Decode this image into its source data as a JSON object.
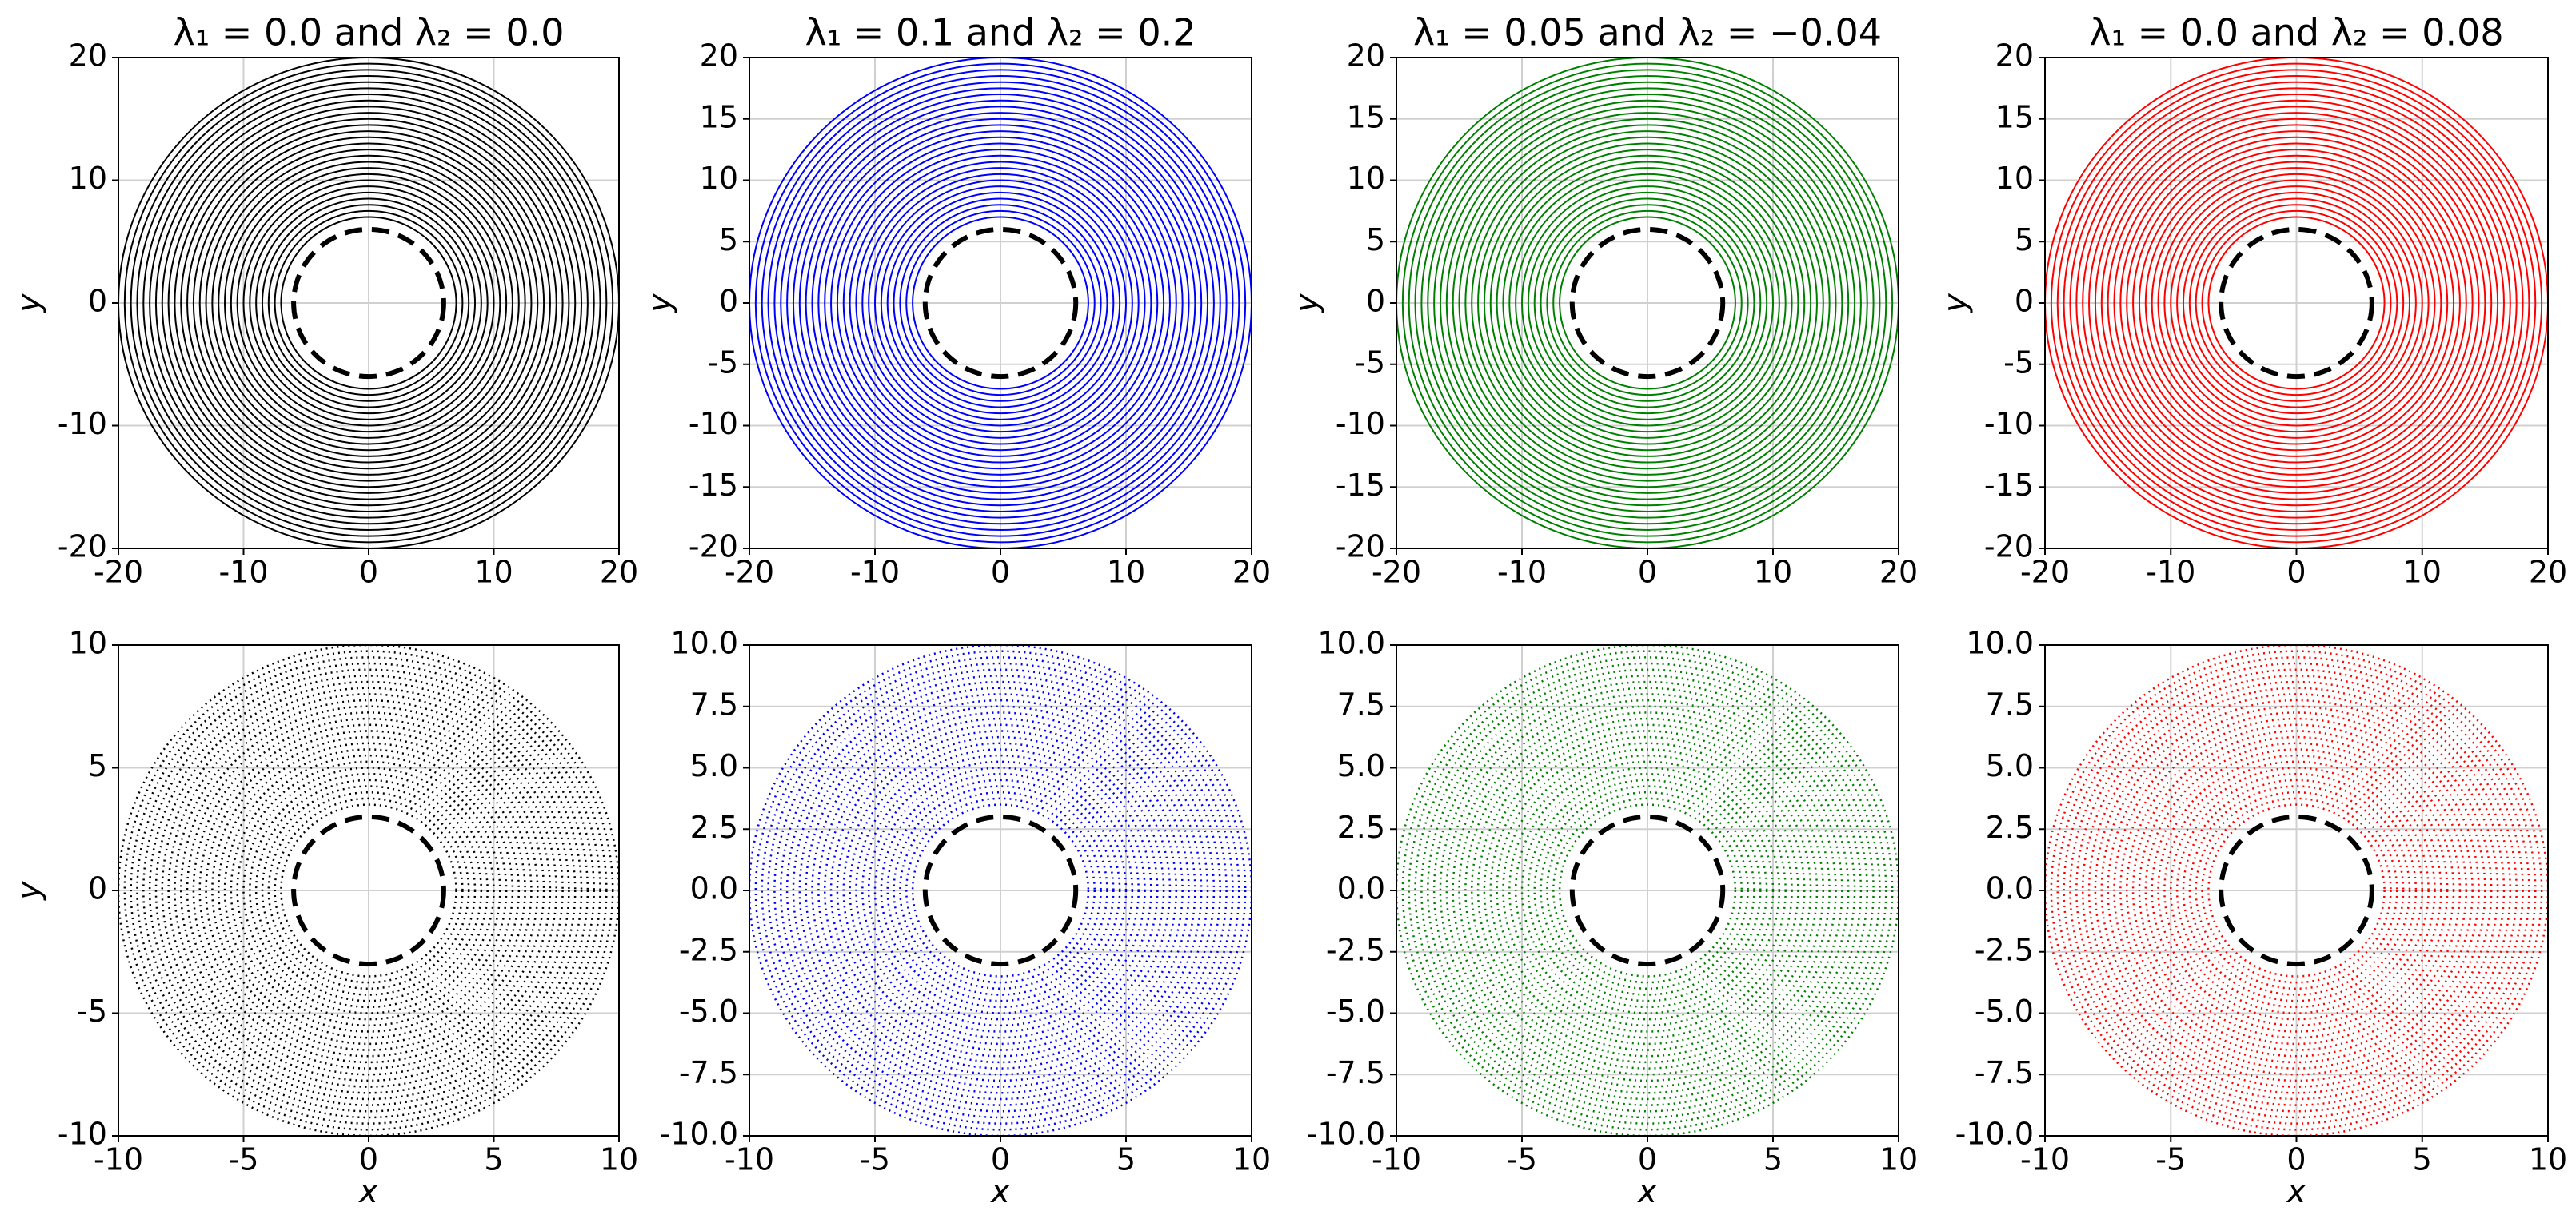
{
  "chart_data": [
    {
      "type": "rings",
      "title": "λ₁ = 0.0 and λ₂ = 0.0",
      "ylabel": "y",
      "color": "#000000",
      "line_style": "solid",
      "grid": true,
      "xlim": [
        -20,
        20
      ],
      "ylim": [
        -20,
        20
      ],
      "xticks": [
        -20,
        -10,
        0,
        10,
        20
      ],
      "yticks": [
        -20,
        -10,
        0,
        10,
        20
      ],
      "boundary_radius": 6,
      "radii": [
        7,
        7.5,
        8,
        8.5,
        9,
        9.5,
        10,
        10.5,
        11,
        11.5,
        12,
        12.5,
        13,
        13.5,
        14,
        14.5,
        15,
        15.5,
        16,
        16.5,
        17,
        17.5,
        18,
        18.5,
        19,
        19.5,
        20
      ]
    },
    {
      "type": "rings",
      "title": "λ₁ = 0.1 and λ₂ = 0.2",
      "ylabel": "y",
      "color": "#0000ff",
      "line_style": "solid",
      "grid": true,
      "xlim": [
        -20,
        20
      ],
      "ylim": [
        -20,
        20
      ],
      "xticks": [
        -20,
        -10,
        0,
        10,
        20
      ],
      "yticks": [
        -20,
        -15,
        -10,
        -5,
        0,
        5,
        10,
        15,
        20
      ],
      "boundary_radius": 6,
      "radii": [
        7,
        7.5,
        8,
        8.5,
        9,
        9.5,
        10,
        10.5,
        11,
        11.5,
        12,
        12.5,
        13,
        13.5,
        14,
        14.5,
        15,
        15.5,
        16,
        16.5,
        17,
        17.5,
        18,
        18.5,
        19,
        19.5,
        20
      ]
    },
    {
      "type": "rings",
      "title": "λ₁ = 0.05 and λ₂ = −0.04",
      "ylabel": "y",
      "color": "#008000",
      "line_style": "solid",
      "grid": true,
      "xlim": [
        -20,
        20
      ],
      "ylim": [
        -20,
        20
      ],
      "xticks": [
        -20,
        -10,
        0,
        10,
        20
      ],
      "yticks": [
        -20,
        -15,
        -10,
        -5,
        0,
        5,
        10,
        15,
        20
      ],
      "boundary_radius": 6,
      "radii": [
        7,
        7.5,
        8,
        8.5,
        9,
        9.5,
        10,
        10.5,
        11,
        11.5,
        12,
        12.5,
        13,
        13.5,
        14,
        14.5,
        15,
        15.5,
        16,
        16.5,
        17,
        17.5,
        18,
        18.5,
        19,
        19.5,
        20
      ]
    },
    {
      "type": "rings",
      "title": "λ₁ = 0.0 and λ₂ = 0.08",
      "ylabel": "y",
      "color": "#ff0000",
      "line_style": "solid",
      "grid": true,
      "xlim": [
        -20,
        20
      ],
      "ylim": [
        -20,
        20
      ],
      "xticks": [
        -20,
        -10,
        0,
        10,
        20
      ],
      "yticks": [
        -20,
        -15,
        -10,
        -5,
        0,
        5,
        10,
        15,
        20
      ],
      "boundary_radius": 6,
      "radii": [
        7,
        7.5,
        8,
        8.5,
        9,
        9.5,
        10,
        10.5,
        11,
        11.5,
        12,
        12.5,
        13,
        13.5,
        14,
        14.5,
        15,
        15.5,
        16,
        16.5,
        17,
        17.5,
        18,
        18.5,
        19,
        19.5,
        20
      ]
    },
    {
      "type": "rings",
      "xlabel": "x",
      "ylabel": "y",
      "color": "#000000",
      "line_style": "dotted",
      "grid": true,
      "xlim": [
        -10,
        10
      ],
      "ylim": [
        -10,
        10
      ],
      "xticks": [
        -10,
        -5,
        0,
        5,
        10
      ],
      "yticks": [
        -10,
        -5,
        0,
        5,
        10
      ],
      "boundary_radius": 3,
      "radii": [
        3.5,
        3.75,
        4,
        4.25,
        4.5,
        4.75,
        5,
        5.25,
        5.5,
        5.75,
        6,
        6.25,
        6.5,
        6.75,
        7,
        7.25,
        7.5,
        7.75,
        8,
        8.25,
        8.5,
        8.75,
        9,
        9.25,
        9.5,
        9.75,
        10
      ]
    },
    {
      "type": "rings",
      "xlabel": "x",
      "color": "#0000ff",
      "line_style": "dotted",
      "grid": true,
      "xlim": [
        -10,
        10
      ],
      "ylim": [
        -10,
        10
      ],
      "xticks": [
        -10,
        -5,
        0,
        5,
        10
      ],
      "yticks": [
        {
          "value": -10,
          "label": "-10.0"
        },
        -7.5,
        {
          "value": -5,
          "label": "-5.0"
        },
        -2.5,
        {
          "value": 0,
          "label": "0.0"
        },
        2.5,
        {
          "value": 5,
          "label": "5.0"
        },
        7.5,
        {
          "value": 10,
          "label": "10.0"
        }
      ],
      "boundary_radius": 3,
      "radii": [
        3.5,
        3.75,
        4,
        4.25,
        4.5,
        4.75,
        5,
        5.25,
        5.5,
        5.75,
        6,
        6.25,
        6.5,
        6.75,
        7,
        7.25,
        7.5,
        7.75,
        8,
        8.25,
        8.5,
        8.75,
        9,
        9.25,
        9.5,
        9.75,
        10
      ]
    },
    {
      "type": "rings",
      "xlabel": "x",
      "color": "#008000",
      "line_style": "dotted",
      "grid": true,
      "xlim": [
        -10,
        10
      ],
      "ylim": [
        -10,
        10
      ],
      "xticks": [
        -10,
        -5,
        0,
        5,
        10
      ],
      "yticks": [
        {
          "value": -10,
          "label": "-10.0"
        },
        -7.5,
        {
          "value": -5,
          "label": "-5.0"
        },
        -2.5,
        {
          "value": 0,
          "label": "0.0"
        },
        2.5,
        {
          "value": 5,
          "label": "5.0"
        },
        7.5,
        {
          "value": 10,
          "label": "10.0"
        }
      ],
      "boundary_radius": 3,
      "radii": [
        3.5,
        3.75,
        4,
        4.25,
        4.5,
        4.75,
        5,
        5.25,
        5.5,
        5.75,
        6,
        6.25,
        6.5,
        6.75,
        7,
        7.25,
        7.5,
        7.75,
        8,
        8.25,
        8.5,
        8.75,
        9,
        9.25,
        9.5,
        9.75,
        10
      ]
    },
    {
      "type": "rings",
      "xlabel": "x",
      "color": "#ff0000",
      "line_style": "dotted",
      "grid": true,
      "xlim": [
        -10,
        10
      ],
      "ylim": [
        -10,
        10
      ],
      "xticks": [
        -10,
        -5,
        0,
        5,
        10
      ],
      "yticks": [
        {
          "value": -10,
          "label": "-10.0"
        },
        -7.5,
        {
          "value": -5,
          "label": "-5.0"
        },
        -2.5,
        {
          "value": 0,
          "label": "0.0"
        },
        2.5,
        {
          "value": 5,
          "label": "5.0"
        },
        7.5,
        {
          "value": 10,
          "label": "10.0"
        }
      ],
      "boundary_radius": 3,
      "radii": [
        3.5,
        3.75,
        4,
        4.25,
        4.5,
        4.75,
        5,
        5.25,
        5.5,
        5.75,
        6,
        6.25,
        6.5,
        6.75,
        7,
        7.25,
        7.5,
        7.75,
        8,
        8.25,
        8.5,
        8.75,
        9,
        9.25,
        9.5,
        9.75,
        10
      ]
    }
  ]
}
